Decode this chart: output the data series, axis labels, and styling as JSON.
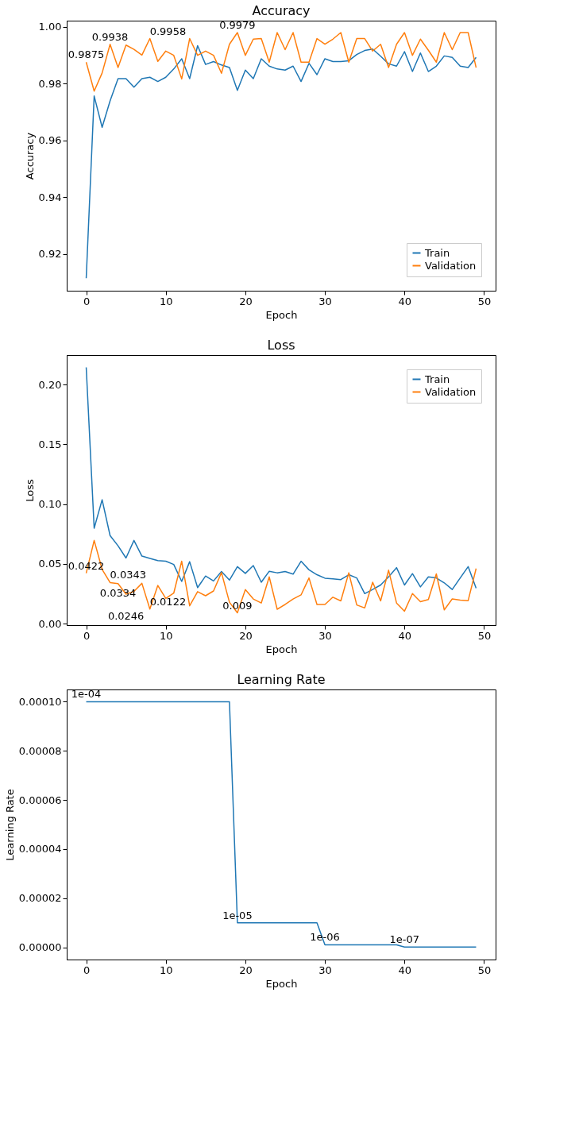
{
  "chart_data": [
    {
      "type": "line",
      "title": "Accuracy",
      "xlabel": "Epoch",
      "ylabel": "Accuracy",
      "legend": "bottom right",
      "grid": false,
      "xlim": [
        -2.45,
        51.45
      ],
      "xticks": [
        0,
        10,
        20,
        30,
        40,
        50
      ],
      "ylim": [
        0.9071,
        1.0021
      ],
      "yticks": [
        0.92,
        0.94,
        0.96,
        0.98,
        {
          "value": 1.0,
          "label": "1.00"
        }
      ],
      "series": [
        {
          "name": "Train",
          "color": "#1f77b4",
          "x": [
            0,
            1,
            2,
            3,
            4,
            5,
            6,
            7,
            8,
            9,
            10,
            11,
            12,
            13,
            14,
            15,
            16,
            17,
            18,
            19,
            20,
            21,
            22,
            23,
            24,
            25,
            26,
            27,
            28,
            29,
            30,
            31,
            32,
            33,
            34,
            35,
            36,
            37,
            38,
            39,
            40,
            41,
            42,
            43,
            44,
            45,
            46,
            47,
            48,
            49
          ],
          "values": [
            0.9115,
            0.9756,
            0.9646,
            0.9739,
            0.9817,
            0.9817,
            0.9787,
            0.9817,
            0.9822,
            0.9807,
            0.9822,
            0.9851,
            0.9887,
            0.9817,
            0.9933,
            0.9867,
            0.9877,
            0.9865,
            0.9856,
            0.9776,
            0.9847,
            0.9817,
            0.9887,
            0.9861,
            0.9851,
            0.9847,
            0.9861,
            0.9807,
            0.9871,
            0.9831,
            0.9887,
            0.9877,
            0.9877,
            0.988,
            0.9902,
            0.9916,
            0.9921,
            0.9896,
            0.9869,
            0.9861,
            0.9912,
            0.9842,
            0.9907,
            0.9842,
            0.9861,
            0.9897,
            0.9892,
            0.9861,
            0.9856,
            0.9892
          ]
        },
        {
          "name": "Validation",
          "color": "#ff7f0e",
          "x": [
            0,
            1,
            2,
            3,
            4,
            5,
            6,
            7,
            8,
            9,
            10,
            11,
            12,
            13,
            14,
            15,
            16,
            17,
            18,
            19,
            20,
            21,
            22,
            23,
            24,
            25,
            26,
            27,
            28,
            29,
            30,
            31,
            32,
            33,
            34,
            35,
            36,
            37,
            38,
            39,
            40,
            41,
            42,
            43,
            44,
            45,
            46,
            47,
            48,
            49
          ],
          "values": [
            0.9875,
            0.9773,
            0.9837,
            0.9938,
            0.9856,
            0.9935,
            0.992,
            0.99,
            0.9958,
            0.9878,
            0.9914,
            0.9899,
            0.9816,
            0.9958,
            0.9899,
            0.9914,
            0.9899,
            0.9836,
            0.9938,
            0.9979,
            0.9899,
            0.9956,
            0.9958,
            0.9875,
            0.9979,
            0.9919,
            0.9979,
            0.9875,
            0.9875,
            0.9958,
            0.9938,
            0.9956,
            0.9979,
            0.9875,
            0.9958,
            0.9958,
            0.9914,
            0.9938,
            0.9856,
            0.9938,
            0.9979,
            0.9899,
            0.9956,
            0.9917,
            0.9875,
            0.9979,
            0.9919,
            0.9979,
            0.9979,
            0.9856
          ]
        }
      ],
      "annotations": [
        {
          "text": "0.9875",
          "x": 0,
          "y": 0.9875
        },
        {
          "text": "0.9938",
          "x": 3,
          "y": 0.9938
        },
        {
          "text": "0.9958",
          "x": 8,
          "y": 0.9958
        },
        {
          "text": "0.9979",
          "x": 19,
          "y": 0.9979
        }
      ]
    },
    {
      "type": "line",
      "title": "Loss",
      "xlabel": "Epoch",
      "ylabel": "Loss",
      "legend": "top right",
      "grid": false,
      "xlim": [
        -2.45,
        51.45
      ],
      "xticks": [
        0,
        10,
        20,
        30,
        40,
        50
      ],
      "ylim": [
        -0.0013,
        0.2248
      ],
      "yticks": [
        {
          "value": 0,
          "label": "0.00"
        },
        0.05,
        {
          "value": 0.1,
          "label": "0.10"
        },
        0.15,
        {
          "value": 0.2,
          "label": "0.20"
        }
      ],
      "series": [
        {
          "name": "Train",
          "color": "#1f77b4",
          "x": [
            0,
            1,
            2,
            3,
            4,
            5,
            6,
            7,
            8,
            9,
            10,
            11,
            12,
            13,
            14,
            15,
            16,
            17,
            18,
            19,
            20,
            21,
            22,
            23,
            24,
            25,
            26,
            27,
            28,
            29,
            30,
            31,
            32,
            33,
            34,
            35,
            36,
            37,
            38,
            39,
            40,
            41,
            42,
            43,
            44,
            45,
            46,
            47,
            48,
            49
          ],
          "values": [
            0.2145,
            0.0798,
            0.1037,
            0.0737,
            0.0651,
            0.0549,
            0.0696,
            0.0565,
            0.0545,
            0.0527,
            0.0522,
            0.0495,
            0.0353,
            0.0518,
            0.0301,
            0.0398,
            0.0357,
            0.0436,
            0.0364,
            0.0477,
            0.042,
            0.0486,
            0.0346,
            0.0438,
            0.0425,
            0.0436,
            0.0414,
            0.0522,
            0.045,
            0.0409,
            0.038,
            0.0375,
            0.0368,
            0.0409,
            0.0382,
            0.0251,
            0.0285,
            0.0323,
            0.0391,
            0.0468,
            0.0323,
            0.0418,
            0.0307,
            0.0391,
            0.0382,
            0.0341,
            0.0285,
            0.0382,
            0.0477,
            0.0296
          ]
        },
        {
          "name": "Validation",
          "color": "#ff7f0e",
          "x": [
            0,
            1,
            2,
            3,
            4,
            5,
            6,
            7,
            8,
            9,
            10,
            11,
            12,
            13,
            14,
            15,
            16,
            17,
            18,
            19,
            20,
            21,
            22,
            23,
            24,
            25,
            26,
            27,
            28,
            29,
            30,
            31,
            32,
            33,
            34,
            35,
            36,
            37,
            38,
            39,
            40,
            41,
            42,
            43,
            44,
            45,
            46,
            47,
            48,
            49
          ],
          "values": [
            0.0422,
            0.0696,
            0.0454,
            0.0343,
            0.0334,
            0.0246,
            0.0269,
            0.0337,
            0.0122,
            0.0319,
            0.021,
            0.0255,
            0.0522,
            0.0149,
            0.0267,
            0.0233,
            0.0273,
            0.0427,
            0.0179,
            0.009,
            0.0285,
            0.0206,
            0.0172,
            0.0391,
            0.012,
            0.016,
            0.0206,
            0.024,
            0.0382,
            0.016,
            0.016,
            0.0221,
            0.019,
            0.0425,
            0.0156,
            0.0131,
            0.0346,
            0.019,
            0.0447,
            0.0172,
            0.0104,
            0.0251,
            0.0183,
            0.0201,
            0.0416,
            0.0115,
            0.0206,
            0.0197,
            0.0192,
            0.0461
          ]
        }
      ],
      "annotations": [
        {
          "text": "0.0422",
          "x": 0,
          "y": 0.0422
        },
        {
          "text": "0.0343",
          "x": 3,
          "y": 0.0343
        },
        {
          "text": "0.0334",
          "x": 4,
          "y": 0.0334
        },
        {
          "text": "0.0246",
          "x": 5,
          "y": 0.0246
        },
        {
          "text": "0.0122",
          "x": 8,
          "y": 0.0122
        },
        {
          "text": "0.009",
          "x": 19,
          "y": 0.009
        }
      ]
    },
    {
      "type": "line",
      "title": "Learning Rate",
      "xlabel": "Epoch",
      "ylabel": "Learning Rate",
      "grid": false,
      "xlim": [
        -2.45,
        51.45
      ],
      "xticks": [
        0,
        10,
        20,
        30,
        40,
        50
      ],
      "ylim": [
        -5e-06,
        0.000105
      ],
      "yticks": [
        {
          "value": 0,
          "label": "0.00000"
        },
        {
          "value": 2e-05,
          "label": "0.00002"
        },
        {
          "value": 4e-05,
          "label": "0.00004"
        },
        {
          "value": 6e-05,
          "label": "0.00006"
        },
        {
          "value": 8e-05,
          "label": "0.00008"
        },
        {
          "value": 0.0001,
          "label": "0.00010"
        }
      ],
      "series": [
        {
          "color": "#1f77b4",
          "x": [
            0,
            1,
            2,
            3,
            4,
            5,
            6,
            7,
            8,
            9,
            10,
            11,
            12,
            13,
            14,
            15,
            16,
            17,
            18,
            19,
            20,
            21,
            22,
            23,
            24,
            25,
            26,
            27,
            28,
            29,
            30,
            31,
            32,
            33,
            34,
            35,
            36,
            37,
            38,
            39,
            40,
            41,
            42,
            43,
            44,
            45,
            46,
            47,
            48,
            49
          ],
          "values": [
            0.0001,
            0.0001,
            0.0001,
            0.0001,
            0.0001,
            0.0001,
            0.0001,
            0.0001,
            0.0001,
            0.0001,
            0.0001,
            0.0001,
            0.0001,
            0.0001,
            0.0001,
            0.0001,
            0.0001,
            0.0001,
            0.0001,
            1e-05,
            1e-05,
            1e-05,
            1e-05,
            1e-05,
            1e-05,
            1e-05,
            1e-05,
            1e-05,
            1e-05,
            1e-05,
            1e-06,
            1e-06,
            1e-06,
            1e-06,
            1e-06,
            1e-06,
            1e-06,
            1e-06,
            1e-06,
            1e-06,
            1e-07,
            1e-07,
            1e-07,
            1e-07,
            1e-07,
            1e-07,
            1e-07,
            1e-07,
            1e-07,
            1e-07
          ]
        }
      ],
      "annotations": [
        {
          "text": "1e-04",
          "x": 0,
          "y": 0.0001
        },
        {
          "text": "1e-05",
          "x": 19,
          "y": 1e-05
        },
        {
          "text": "1e-06",
          "x": 30,
          "y": 1e-06
        },
        {
          "text": "1e-07",
          "x": 40,
          "y": 1e-07
        }
      ]
    }
  ]
}
